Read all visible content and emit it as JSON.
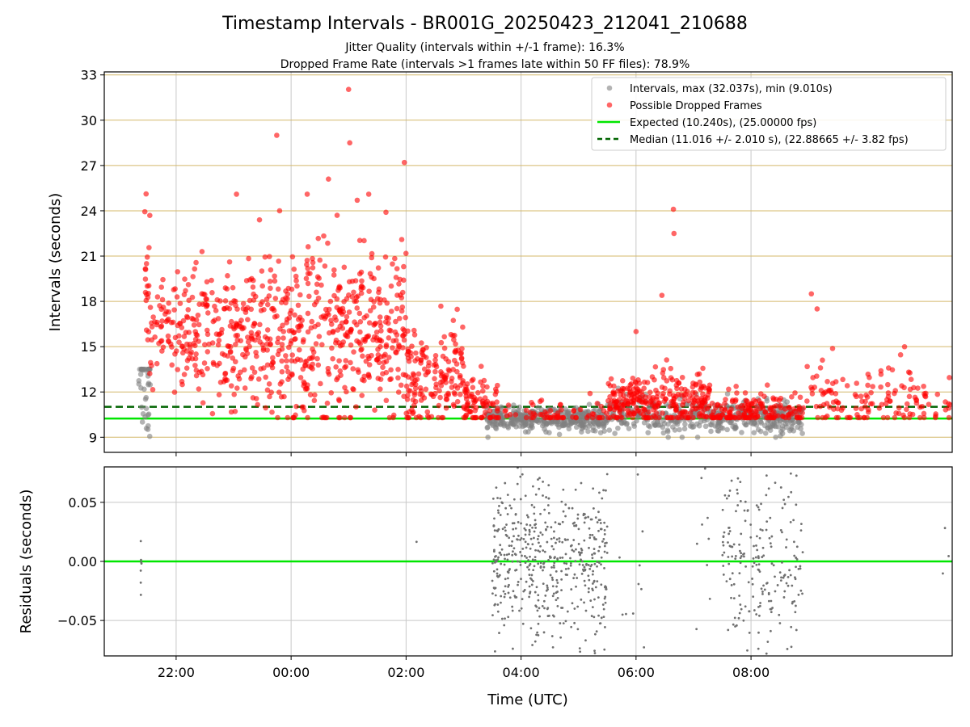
{
  "figure": {
    "title": "Timestamp Intervals - BR001G_20250423_212041_210688",
    "subtitle_1": "Jitter Quality (intervals within +/-1 frame): 16.3%",
    "subtitle_2": "Dropped Frame Rate (intervals >1 frames late within 50 FF files): 78.9%",
    "xlabel": "Time (UTC)",
    "colors": {
      "intervals": "#808080",
      "dropped": "#ff0000",
      "expected": "#00e600",
      "median": "#006400",
      "hgrid_top": "#d4b86a",
      "grid": "#c8c8c8"
    }
  },
  "chart_data": [
    {
      "type": "scatter",
      "panel": "top",
      "ylabel": "Intervals (seconds)",
      "ylim": [
        8,
        33.2
      ],
      "yticks": [
        9,
        12,
        15,
        18,
        21,
        24,
        27,
        30,
        33
      ],
      "ytick_labels": [
        "9",
        "12",
        "15",
        "18",
        "21",
        "24",
        "27",
        "30",
        "33"
      ],
      "xlim_hours": [
        -3.25,
        11.5
      ],
      "xticks_hours": [
        -2,
        0,
        2,
        4,
        6,
        8
      ],
      "xtick_labels": [
        "22:00",
        "00:00",
        "02:00",
        "04:00",
        "06:00",
        "08:00"
      ],
      "grid": true,
      "legend_position": "top-right",
      "legend": [
        {
          "label": "Intervals, max (32.037s), min (9.010s)",
          "kind": "marker",
          "color": "#808080"
        },
        {
          "label": "Possible Dropped Frames",
          "kind": "marker",
          "color": "#ff0000"
        },
        {
          "label": "Expected (10.240s), (25.00000 fps)",
          "kind": "line",
          "color": "#00e600"
        },
        {
          "label": "Median (11.016 +/- 2.010 s), (22.88665 +/- 3.82 fps)",
          "kind": "dashed",
          "color": "#006400"
        }
      ],
      "reference_lines": {
        "expected": 10.24,
        "median": 11.016
      },
      "series_description": [
        {
          "name": "Intervals",
          "color": "#808080",
          "approx_range_s": [
            9.01,
            32.037
          ]
        },
        {
          "name": "Possible Dropped Frames",
          "color": "#ff0000"
        }
      ],
      "segments_hours_intervals": [
        {
          "t": [
            -2.65,
            -2.45
          ],
          "mean": 13.5,
          "sd": 2.5,
          "n": 40,
          "kind": "gray"
        },
        {
          "t": [
            -2.55,
            -2.45
          ],
          "mean": 19.5,
          "sd": 3.0,
          "n": 20,
          "kind": "red"
        },
        {
          "t": [
            -2.45,
            -1.2
          ],
          "mean": 15.8,
          "sd": 2.0,
          "n": 160,
          "kind": "red"
        },
        {
          "t": [
            -1.2,
            0.0
          ],
          "mean": 15.5,
          "sd": 2.4,
          "n": 200,
          "kind": "red"
        },
        {
          "t": [
            0.0,
            1.2
          ],
          "mean": 15.6,
          "sd": 3.0,
          "n": 220,
          "kind": "red"
        },
        {
          "t": [
            1.2,
            2.0
          ],
          "mean": 16.0,
          "sd": 2.6,
          "n": 150,
          "kind": "red"
        },
        {
          "t": [
            2.0,
            3.0
          ],
          "mean": 12.8,
          "sd": 1.8,
          "n": 160,
          "kind": "red"
        },
        {
          "t": [
            3.0,
            3.6
          ],
          "mean": 11.2,
          "sd": 1.0,
          "n": 80,
          "kind": "red"
        },
        {
          "t": [
            3.4,
            5.5
          ],
          "mean": 10.2,
          "sd": 0.35,
          "n": 380,
          "kind": "gray"
        },
        {
          "t": [
            3.6,
            5.5
          ],
          "mean": 10.4,
          "sd": 0.5,
          "n": 60,
          "kind": "red"
        },
        {
          "t": [
            5.5,
            7.3
          ],
          "mean": 10.4,
          "sd": 0.6,
          "n": 200,
          "kind": "gray"
        },
        {
          "t": [
            5.5,
            7.3
          ],
          "mean": 11.3,
          "sd": 0.9,
          "n": 280,
          "kind": "red"
        },
        {
          "t": [
            7.3,
            8.9
          ],
          "mean": 10.3,
          "sd": 0.5,
          "n": 260,
          "kind": "gray"
        },
        {
          "t": [
            7.3,
            8.9
          ],
          "mean": 10.7,
          "sd": 0.7,
          "n": 160,
          "kind": "red"
        },
        {
          "t": [
            8.9,
            11.5
          ],
          "mean": 11.6,
          "sd": 1.2,
          "n": 140,
          "kind": "red"
        }
      ],
      "outliers": [
        {
          "t": -1.55,
          "y": 21.3
        },
        {
          "t": -0.95,
          "y": 25.1
        },
        {
          "t": -0.55,
          "y": 23.4
        },
        {
          "t": 0.65,
          "y": 26.1
        },
        {
          "t": 0.8,
          "y": 23.7
        },
        {
          "t": 1.0,
          "y": 32.04
        },
        {
          "t": 1.02,
          "y": 28.5
        },
        {
          "t": 1.15,
          "y": 24.7
        },
        {
          "t": 1.35,
          "y": 25.1
        },
        {
          "t": 1.65,
          "y": 23.9
        },
        {
          "t": 1.97,
          "y": 27.2
        },
        {
          "t": -0.25,
          "y": 29.0
        },
        {
          "t": 0.28,
          "y": 25.1
        },
        {
          "t": -0.2,
          "y": 24.0
        },
        {
          "t": 6.45,
          "y": 18.4
        },
        {
          "t": 6.65,
          "y": 24.1
        },
        {
          "t": 6.66,
          "y": 22.5
        },
        {
          "t": 9.05,
          "y": 18.5
        },
        {
          "t": 9.15,
          "y": 17.5
        },
        {
          "t": 6.0,
          "y": 16.0
        },
        {
          "t": 5.2,
          "y": 11.9
        }
      ]
    },
    {
      "type": "scatter",
      "panel": "bottom",
      "ylabel": "Residuals (seconds)",
      "ylim": [
        -0.08,
        0.08
      ],
      "yticks": [
        -0.05,
        0.0,
        0.05
      ],
      "ytick_labels": [
        "−0.05",
        "0.00",
        "0.05"
      ],
      "xlim_hours": [
        -3.25,
        11.5
      ],
      "xticks_hours": [
        -2,
        0,
        2,
        4,
        6,
        8
      ],
      "xtick_labels": [
        "22:00",
        "00:00",
        "02:00",
        "04:00",
        "06:00",
        "08:00"
      ],
      "grid": true,
      "zero_line_color": "#00e600",
      "point_color": "#707070",
      "clusters": [
        {
          "t": [
            -2.62,
            -2.6
          ],
          "sd": 0.02,
          "n": 7
        },
        {
          "t": [
            2.15,
            2.2
          ],
          "sd": 0.015,
          "n": 1
        },
        {
          "t": [
            3.5,
            5.5
          ],
          "sd": 0.035,
          "n": 520
        },
        {
          "t": [
            5.7,
            6.2
          ],
          "sd": 0.04,
          "n": 10
        },
        {
          "t": [
            7.0,
            7.3
          ],
          "sd": 0.05,
          "n": 10
        },
        {
          "t": [
            7.5,
            8.9
          ],
          "sd": 0.04,
          "n": 220
        },
        {
          "t": [
            11.3,
            11.5
          ],
          "sd": 0.04,
          "n": 3
        }
      ]
    }
  ]
}
